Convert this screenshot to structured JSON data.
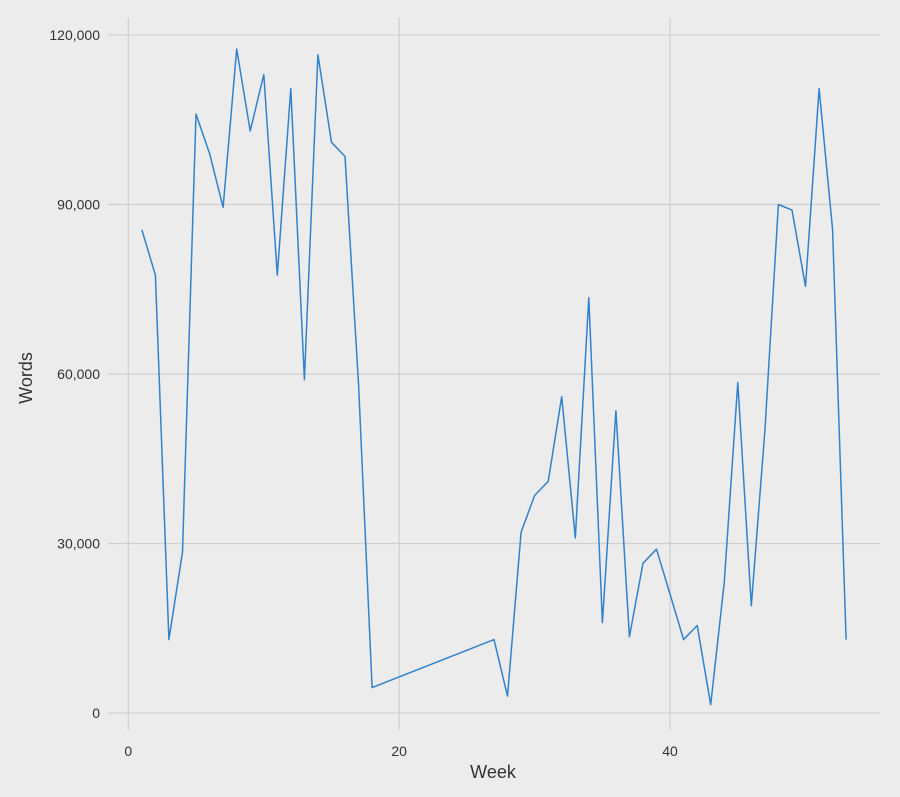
{
  "chart_data": {
    "type": "line",
    "title": "",
    "xlabel": "Week",
    "ylabel": "Words",
    "xlim": [
      -1.5,
      55.5
    ],
    "ylim": [
      -3000,
      123000
    ],
    "x_ticks": [
      0,
      20,
      40
    ],
    "x_tick_labels": [
      "0",
      "20",
      "40"
    ],
    "y_ticks": [
      0,
      30000,
      60000,
      90000,
      120000
    ],
    "y_tick_labels": [
      "0",
      "30,000",
      "60,000",
      "90,000",
      "120,000"
    ],
    "grid": true,
    "line_color": "#3182cd",
    "series": [
      {
        "x": [
          1,
          2,
          3,
          4,
          5,
          6,
          7,
          8,
          9,
          10,
          11,
          12,
          13,
          14,
          15,
          16,
          17,
          18,
          27,
          28,
          29,
          30,
          31,
          32,
          33,
          34,
          35,
          36,
          37,
          38,
          39,
          40,
          41,
          42,
          43,
          44,
          45,
          46,
          47,
          48,
          49,
          50,
          51,
          52,
          53
        ],
        "y": [
          85500,
          77500,
          13000,
          28500,
          106000,
          99000,
          89500,
          117500,
          103000,
          113000,
          77500,
          110500,
          59000,
          116500,
          101000,
          98500,
          58000,
          4500,
          13000,
          3000,
          32000,
          38500,
          41000,
          56000,
          31000,
          73500,
          16000,
          53500,
          13500,
          26500,
          29000,
          21000,
          13000,
          15500,
          1500,
          23000,
          58500,
          19000,
          50000,
          90000,
          89000,
          75500,
          110500,
          85500,
          13000
        ]
      }
    ]
  }
}
